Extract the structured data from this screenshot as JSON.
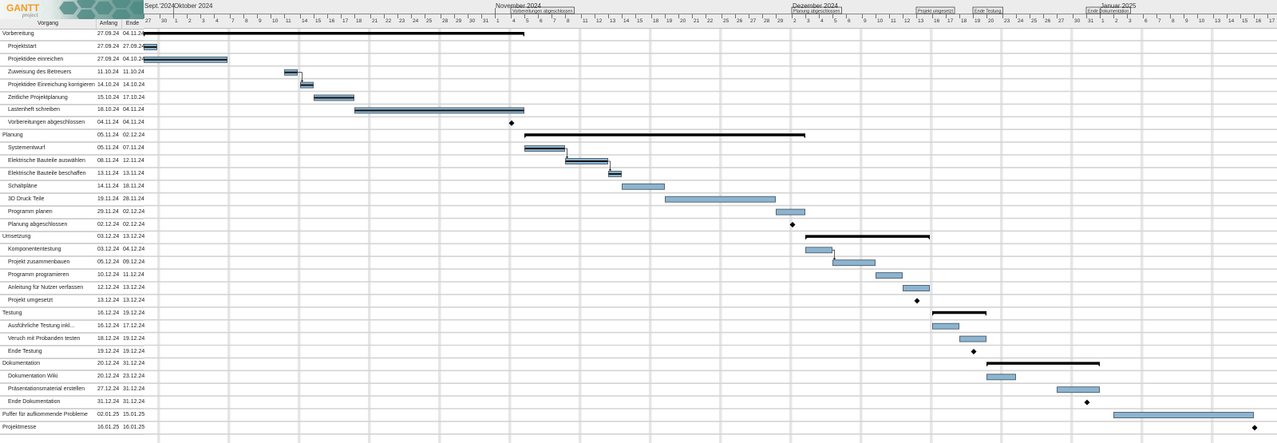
{
  "logo": {
    "text": "GANTT",
    "subtext": "project"
  },
  "table_header": {
    "name": "Vorgang",
    "start": "Anfang",
    "end": "Ende"
  },
  "colors": {
    "bar_fill": "#8cb4d0",
    "bar_border": "#4a5a66",
    "summary": "#000000",
    "weekend": "#e6e6e6",
    "row_line": "#d4d4d4",
    "header_bg": "#ececec",
    "logo_orange": "#f29a1f"
  },
  "chart_data": {
    "type": "gantt",
    "x_start": "2024-09-27",
    "x_end": "2025-01-15",
    "weekends_compressed": true,
    "months": [
      {
        "label": "Sept.'2024",
        "date": "2024-09-27"
      },
      {
        "label": "Oktober 2024",
        "date": "2024-10-01"
      },
      {
        "label": "November 2024",
        "date": "2024-11-01"
      },
      {
        "label": "Dezember 2024",
        "date": "2024-12-02"
      },
      {
        "label": "Januar 2025",
        "date": "2025-01-01"
      }
    ],
    "tasks": [
      {
        "name": "Vorbereitung",
        "start_label": "27.09.24",
        "end_label": "04.11.24",
        "start": "2024-09-27",
        "end": "2024-11-04",
        "type": "summary"
      },
      {
        "name": "Projektstart",
        "start_label": "27.09.24",
        "end_label": "27.09.24",
        "start": "2024-09-27",
        "end": "2024-09-27",
        "type": "task",
        "critical": true
      },
      {
        "name": "Projektidee einreichen",
        "start_label": "27.09.24",
        "end_label": "04.10.24",
        "start": "2024-09-27",
        "end": "2024-10-04",
        "type": "task",
        "critical": true
      },
      {
        "name": "Zuweisung des Betreuers",
        "start_label": "11.10.24",
        "end_label": "11.10.24",
        "start": "2024-10-11",
        "end": "2024-10-11",
        "type": "task",
        "critical": true
      },
      {
        "name": "Projektidee Einreichung korrigieren",
        "start_label": "14.10.24",
        "end_label": "14.10.24",
        "start": "2024-10-14",
        "end": "2024-10-14",
        "type": "task",
        "critical": true
      },
      {
        "name": "Zeitliche Projektplanung",
        "start_label": "15.10.24",
        "end_label": "17.10.24",
        "start": "2024-10-15",
        "end": "2024-10-17",
        "type": "task",
        "critical": true
      },
      {
        "name": "Lastenheft schreiben",
        "start_label": "18.10.24",
        "end_label": "04.11.24",
        "start": "2024-10-18",
        "end": "2024-11-04",
        "type": "task",
        "critical": true
      },
      {
        "name": "Vorbereitungen abgeschlossen",
        "start_label": "04.11.24",
        "end_label": "04.11.24",
        "start": "2024-11-04",
        "end": "2024-11-04",
        "type": "milestone"
      },
      {
        "name": "Planung",
        "start_label": "05.11.24",
        "end_label": "02.12.24",
        "start": "2024-11-05",
        "end": "2024-12-02",
        "type": "summary"
      },
      {
        "name": "Systementwurf",
        "start_label": "05.11.24",
        "end_label": "07.11.24",
        "start": "2024-11-05",
        "end": "2024-11-07",
        "type": "task",
        "critical": true
      },
      {
        "name": "Elektrische Bauteile auswählen",
        "start_label": "08.11.24",
        "end_label": "12.11.24",
        "start": "2024-11-08",
        "end": "2024-11-12",
        "type": "task",
        "critical": true
      },
      {
        "name": "Elektrische Bauteile beschaffen",
        "start_label": "13.11.24",
        "end_label": "13.11.24",
        "start": "2024-11-13",
        "end": "2024-11-13",
        "type": "task",
        "critical": true
      },
      {
        "name": "Schaltpläne",
        "start_label": "14.11.24",
        "end_label": "18.11.24",
        "start": "2024-11-14",
        "end": "2024-11-18",
        "type": "task"
      },
      {
        "name": "3D Druck Teile",
        "start_label": "19.11.24",
        "end_label": "28.11.24",
        "start": "2024-11-19",
        "end": "2024-11-28",
        "type": "task"
      },
      {
        "name": "Programm planen",
        "start_label": "29.11.24",
        "end_label": "02.12.24",
        "start": "2024-11-29",
        "end": "2024-12-02",
        "type": "task"
      },
      {
        "name": "Planung abgeschlossen",
        "start_label": "02.12.24",
        "end_label": "02.12.24",
        "start": "2024-12-02",
        "end": "2024-12-02",
        "type": "milestone"
      },
      {
        "name": "Umsetzung",
        "start_label": "03.12.24",
        "end_label": "13.12.24",
        "start": "2024-12-03",
        "end": "2024-12-13",
        "type": "summary"
      },
      {
        "name": "Komponententestung",
        "start_label": "03.12.24",
        "end_label": "04.12.24",
        "start": "2024-12-03",
        "end": "2024-12-04",
        "type": "task"
      },
      {
        "name": "Projekt zusammenbauen",
        "start_label": "05.12.24",
        "end_label": "09.12.24",
        "start": "2024-12-05",
        "end": "2024-12-09",
        "type": "task"
      },
      {
        "name": "Programm programieren",
        "start_label": "10.12.24",
        "end_label": "11.12.24",
        "start": "2024-12-10",
        "end": "2024-12-11",
        "type": "task"
      },
      {
        "name": "Anleitung für Nutzer verfassen",
        "start_label": "12.12.24",
        "end_label": "13.12.24",
        "start": "2024-12-12",
        "end": "2024-12-13",
        "type": "task"
      },
      {
        "name": "Projekt umgesetzt",
        "start_label": "13.12.24",
        "end_label": "13.12.24",
        "start": "2024-12-13",
        "end": "2024-12-13",
        "type": "milestone"
      },
      {
        "name": "Testung",
        "start_label": "16.12.24",
        "end_label": "19.12.24",
        "start": "2024-12-16",
        "end": "2024-12-19",
        "type": "summary"
      },
      {
        "name": "Ausführliche Testung inkl...",
        "start_label": "16.12.24",
        "end_label": "17.12.24",
        "start": "2024-12-16",
        "end": "2024-12-17",
        "type": "task"
      },
      {
        "name": "Veruch mit Probanden testen",
        "start_label": "18.12.24",
        "end_label": "19.12.24",
        "start": "2024-12-18",
        "end": "2024-12-19",
        "type": "task"
      },
      {
        "name": "Ende Testung",
        "start_label": "19.12.24",
        "end_label": "19.12.24",
        "start": "2024-12-19",
        "end": "2024-12-19",
        "type": "milestone"
      },
      {
        "name": "Dokumentation",
        "start_label": "20.12.24",
        "end_label": "31.12.24",
        "start": "2024-12-20",
        "end": "2024-12-31",
        "type": "summary"
      },
      {
        "name": "Dokumentation Wiki",
        "start_label": "20.12.24",
        "end_label": "23.12.24",
        "start": "2024-12-20",
        "end": "2024-12-23",
        "type": "task"
      },
      {
        "name": "Präsentationsmaterial erstellen",
        "start_label": "27.12.24",
        "end_label": "31.12.24",
        "start": "2024-12-27",
        "end": "2024-12-31",
        "type": "task"
      },
      {
        "name": "Ende Dokumentation",
        "start_label": "31.12.24",
        "end_label": "31.12.24",
        "start": "2024-12-31",
        "end": "2024-12-31",
        "type": "milestone"
      },
      {
        "name": "Puffer für aufkommende Probleme",
        "start_label": "02.01.25",
        "end_label": "15.01.25",
        "start": "2025-01-02",
        "end": "2025-01-15",
        "type": "task",
        "top_level": true
      },
      {
        "name": "Projektmesse",
        "start_label": "16.01.25",
        "end_label": "16.01.25",
        "start": "2025-01-16",
        "end": "2025-01-16",
        "type": "milestone",
        "top_level": true
      }
    ],
    "dependencies": [
      [
        3,
        4
      ],
      [
        9,
        10
      ],
      [
        10,
        11
      ],
      [
        17,
        18
      ]
    ],
    "header_milestones": [
      "Vorbereitungen abgeschlossen",
      "Planung abgeschlossen",
      "Projekt umgesetzt",
      "Ende Testung",
      "Ende Dokumentation"
    ]
  }
}
